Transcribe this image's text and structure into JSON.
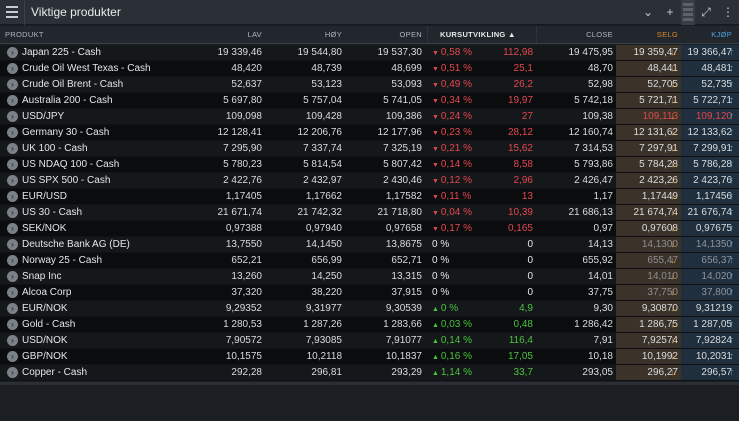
{
  "window": {
    "title": "Viktige produkter"
  },
  "icons": {
    "menu": "hamburger-icon",
    "dropdown": "chevron-down-icon",
    "add": "plus-icon",
    "expand": "expand-icon",
    "more": "more-icon",
    "row_expand": "chevron-right-icon"
  },
  "columns": {
    "product": "PRODUKT",
    "low": "LAV",
    "high": "HØY",
    "open": "OPEN",
    "change": "KURSUTVIKLING ▲",
    "close": "CLOSE",
    "sell": "SELG",
    "buy": "KJØP"
  },
  "colors": {
    "down": "#e2484d",
    "up": "#4bc23f",
    "sell_accent": "#d88a2c",
    "buy_accent": "#4aa4e0"
  },
  "rows": [
    {
      "name": "Japan 225 - Cash",
      "low": "19 339,46",
      "high": "19 544,80",
      "open": "19 537,30",
      "dir": "down",
      "pct": "0,58 %",
      "abs": "112,98",
      "close": "19 475,95",
      "sell": "19 359,47",
      "buy": "19 366,47",
      "sell_stale": false,
      "buy_stale": false
    },
    {
      "name": "Crude Oil West Texas - Cash",
      "low": "48,420",
      "high": "48,739",
      "open": "48,699",
      "dir": "down",
      "pct": "0,51 %",
      "abs": "25,1",
      "close": "48,70",
      "sell": "48,441",
      "buy": "48,481",
      "sell_stale": false,
      "buy_stale": false
    },
    {
      "name": "Crude Oil Brent - Cash",
      "low": "52,637",
      "high": "53,123",
      "open": "53,093",
      "dir": "down",
      "pct": "0,49 %",
      "abs": "26,2",
      "close": "52,98",
      "sell": "52,705",
      "buy": "52,735",
      "sell_stale": false,
      "buy_stale": false
    },
    {
      "name": "Australia 200 - Cash",
      "low": "5 697,80",
      "high": "5 757,04",
      "open": "5 741,05",
      "dir": "down",
      "pct": "0,34 %",
      "abs": "19,97",
      "close": "5 742,18",
      "sell": "5 721,71",
      "buy": "5 722,71",
      "sell_stale": false,
      "buy_stale": false
    },
    {
      "name": "USD/JPY",
      "low": "109,098",
      "high": "109,428",
      "open": "109,386",
      "dir": "down",
      "pct": "0,24 %",
      "abs": "27",
      "close": "109,38",
      "sell": "109,113",
      "buy": "109,120",
      "sell_stale": false,
      "buy_stale": false,
      "sell_red": true
    },
    {
      "name": "Germany 30 - Cash",
      "low": "12 128,41",
      "high": "12 206,76",
      "open": "12 177,96",
      "dir": "down",
      "pct": "0,23 %",
      "abs": "28,12",
      "close": "12 160,74",
      "sell": "12 131,62",
      "buy": "12 133,62",
      "sell_stale": false,
      "buy_stale": false
    },
    {
      "name": "UK 100 - Cash",
      "low": "7 295,90",
      "high": "7 337,74",
      "open": "7 325,19",
      "dir": "down",
      "pct": "0,21 %",
      "abs": "15,62",
      "close": "7 314,53",
      "sell": "7 297,91",
      "buy": "7 299,91",
      "sell_stale": false,
      "buy_stale": false
    },
    {
      "name": "US NDAQ 100 - Cash",
      "low": "5 780,23",
      "high": "5 814,54",
      "open": "5 807,42",
      "dir": "down",
      "pct": "0,14 %",
      "abs": "8,58",
      "close": "5 793,86",
      "sell": "5 784,28",
      "buy": "5 786,28",
      "sell_stale": false,
      "buy_stale": false
    },
    {
      "name": "US SPX 500 - Cash",
      "low": "2 422,76",
      "high": "2 432,97",
      "open": "2 430,46",
      "dir": "down",
      "pct": "0,12 %",
      "abs": "2,96",
      "close": "2 426,47",
      "sell": "2 423,26",
      "buy": "2 423,76",
      "sell_stale": false,
      "buy_stale": false
    },
    {
      "name": "EUR/USD",
      "low": "1,17405",
      "high": "1,17662",
      "open": "1,17582",
      "dir": "down",
      "pct": "0,11 %",
      "abs": "13",
      "close": "1,17",
      "sell": "1,17449",
      "buy": "1,17456",
      "sell_stale": false,
      "buy_stale": false
    },
    {
      "name": "US 30 - Cash",
      "low": "21 671,74",
      "high": "21 742,32",
      "open": "21 718,80",
      "dir": "down",
      "pct": "0,04 %",
      "abs": "10,39",
      "close": "21 686,13",
      "sell": "21 674,74",
      "buy": "21 676,74",
      "sell_stale": false,
      "buy_stale": false
    },
    {
      "name": "SEK/NOK",
      "low": "0,97388",
      "high": "0,97940",
      "open": "0,97658",
      "dir": "down",
      "pct": "0,17 %",
      "abs": "0,165",
      "close": "0,97",
      "sell": "0,97608",
      "buy": "0,97675",
      "sell_stale": false,
      "buy_stale": false
    },
    {
      "name": "Deutsche Bank AG (DE)",
      "low": "13,7550",
      "high": "14,1450",
      "open": "13,8675",
      "dir": "flat",
      "pct": "0 %",
      "abs": "0",
      "close": "14,13",
      "sell": "14,1300",
      "buy": "14,1350",
      "sell_stale": true,
      "buy_stale": true
    },
    {
      "name": "Norway 25 - Cash",
      "low": "652,21",
      "high": "656,99",
      "open": "652,71",
      "dir": "flat",
      "pct": "0 %",
      "abs": "0",
      "close": "655,92",
      "sell": "655,47",
      "buy": "656,37",
      "sell_stale": true,
      "buy_stale": true
    },
    {
      "name": "Snap Inc",
      "low": "13,260",
      "high": "14,250",
      "open": "13,315",
      "dir": "flat",
      "pct": "0 %",
      "abs": "0",
      "close": "14,01",
      "sell": "14,010",
      "buy": "14,020",
      "sell_stale": true,
      "buy_stale": true
    },
    {
      "name": "Alcoa Corp",
      "low": "37,320",
      "high": "38,220",
      "open": "37,915",
      "dir": "flat",
      "pct": "0 %",
      "abs": "0",
      "close": "37,75",
      "sell": "37,750",
      "buy": "37,800",
      "sell_stale": true,
      "buy_stale": true
    },
    {
      "name": "EUR/NOK",
      "low": "9,29352",
      "high": "9,31977",
      "open": "9,30539",
      "dir": "up",
      "pct": "0 %",
      "abs": "4,9",
      "close": "9,30",
      "sell": "9,30870",
      "buy": "9,31219",
      "sell_stale": false,
      "buy_stale": false
    },
    {
      "name": "Gold - Cash",
      "low": "1 280,53",
      "high": "1 287,26",
      "open": "1 283,66",
      "dir": "up",
      "pct": "0,03 %",
      "abs": "0,48",
      "close": "1 286,42",
      "sell": "1 286,75",
      "buy": "1 287,05",
      "sell_stale": false,
      "buy_stale": false
    },
    {
      "name": "USD/NOK",
      "low": "7,90572",
      "high": "7,93085",
      "open": "7,91077",
      "dir": "up",
      "pct": "0,14 %",
      "abs": "116,4",
      "close": "7,91",
      "sell": "7,92574",
      "buy": "7,92824",
      "sell_stale": false,
      "buy_stale": false
    },
    {
      "name": "GBP/NOK",
      "low": "10,1575",
      "high": "10,2118",
      "open": "10,1837",
      "dir": "up",
      "pct": "0,16 %",
      "abs": "17,05",
      "close": "10,18",
      "sell": "10,1992",
      "buy": "10,2031",
      "sell_stale": false,
      "buy_stale": false
    },
    {
      "name": "Copper - Cash",
      "low": "292,28",
      "high": "296,81",
      "open": "293,29",
      "dir": "up",
      "pct": "1,14 %",
      "abs": "33,7",
      "close": "293,05",
      "sell": "296,27",
      "buy": "296,57",
      "sell_stale": false,
      "buy_stale": false
    }
  ]
}
